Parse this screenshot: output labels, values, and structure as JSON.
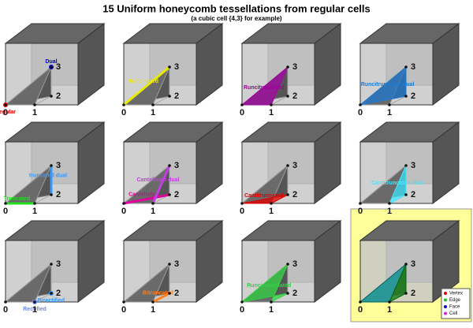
{
  "title": "15 Uniform honeycomb tessellations from regular cells",
  "subtitle": "(a cubic cell {4,3} for example)",
  "vertex_labels": [
    "0",
    "1",
    "2",
    "3"
  ],
  "panels": [
    {
      "labels": [
        {
          "text": "Regular",
          "color": "#e00000"
        },
        {
          "text": "Dual",
          "color": "#0000e0"
        }
      ]
    },
    {
      "labels": [
        {
          "text": "Runcinated",
          "color": "#e8e800"
        }
      ]
    },
    {
      "labels": [
        {
          "text": "Runcitruncated",
          "color": "#a000a0"
        }
      ]
    },
    {
      "labels": [
        {
          "text": "Runcitruncated dual",
          "color": "#1e78d0"
        }
      ]
    },
    {
      "labels": [
        {
          "text": "Truncated",
          "color": "#20e020"
        },
        {
          "text": "truncated dual",
          "color": "#3399ff"
        }
      ]
    },
    {
      "labels": [
        {
          "text": "Cantellated",
          "color": "#e000a0"
        },
        {
          "text": "Cantellated dual",
          "color": "#c040e0"
        }
      ]
    },
    {
      "labels": [
        {
          "text": "Cantitruncated",
          "color": "#e00000"
        }
      ]
    },
    {
      "labels": [
        {
          "text": "Cantitruncated dual",
          "color": "#40e8ff"
        }
      ]
    },
    {
      "labels": [
        {
          "text": "Rectified",
          "color": "#6688ff"
        },
        {
          "text": "Birectified",
          "color": "#3399ff"
        }
      ]
    },
    {
      "labels": [
        {
          "text": "Bitruncated",
          "color": "#ff8020"
        }
      ]
    },
    {
      "labels": [
        {
          "text": "Runcicantellated",
          "color": "#30d040"
        }
      ]
    },
    {
      "labels": []
    }
  ],
  "legend": [
    {
      "text": "Vertex",
      "color": "#e00000"
    },
    {
      "text": "Edge",
      "color": "#20c020"
    },
    {
      "text": "Face",
      "color": "#0000c0"
    },
    {
      "text": "Cell",
      "color": "#e020e0"
    }
  ]
}
